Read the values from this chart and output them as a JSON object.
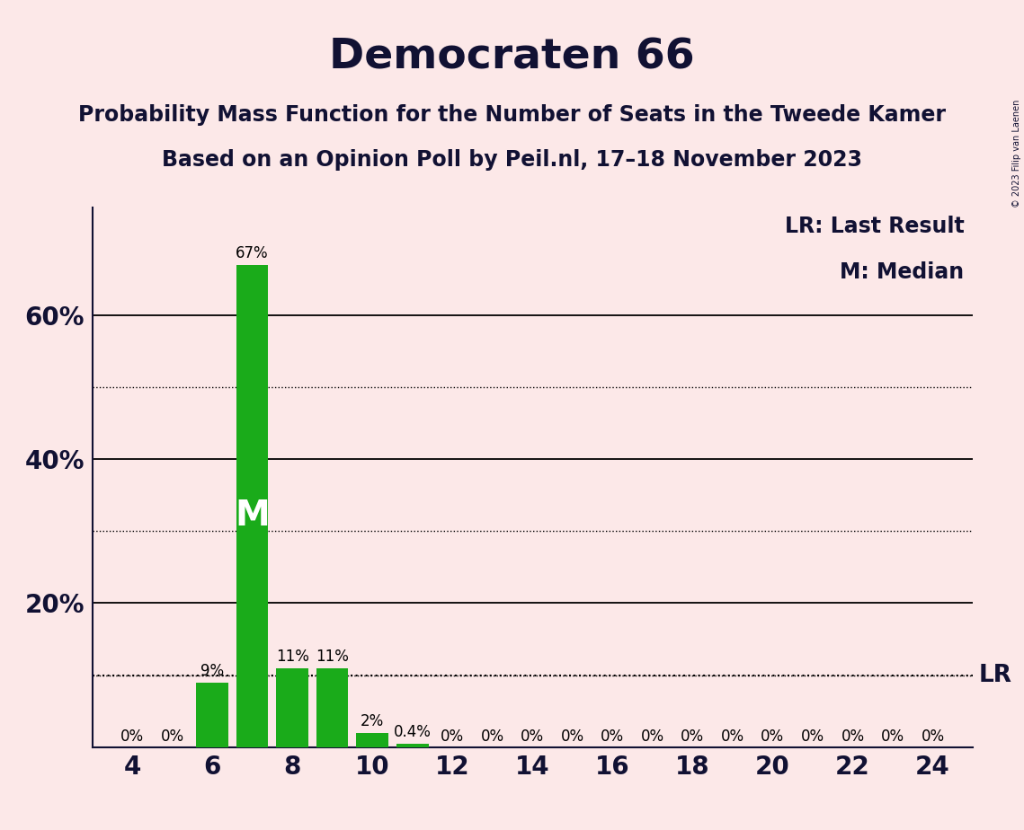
{
  "title": "Democraten 66",
  "subtitle1": "Probability Mass Function for the Number of Seats in the Tweede Kamer",
  "subtitle2": "Based on an Opinion Poll by Peil.nl, 17–18 November 2023",
  "copyright": "© 2023 Filip van Laenen",
  "seats": [
    4,
    5,
    6,
    7,
    8,
    9,
    10,
    11,
    12,
    13,
    14,
    15,
    16,
    17,
    18,
    19,
    20,
    21,
    22,
    23,
    24
  ],
  "probabilities": [
    0.0,
    0.0,
    9.0,
    67.0,
    11.0,
    11.0,
    2.0,
    0.4,
    0.0,
    0.0,
    0.0,
    0.0,
    0.0,
    0.0,
    0.0,
    0.0,
    0.0,
    0.0,
    0.0,
    0.0,
    0.0
  ],
  "bar_labels": [
    "0%",
    "0%",
    "9%",
    "67%",
    "11%",
    "11%",
    "2%",
    "0.4%",
    "0%",
    "0%",
    "0%",
    "0%",
    "0%",
    "0%",
    "0%",
    "0%",
    "0%",
    "0%",
    "0%",
    "0%",
    "0%"
  ],
  "bar_color": "#1aab1a",
  "background_color": "#fce8e8",
  "median_seat": 7,
  "median_label": "M",
  "lr_value": 10.0,
  "lr_label": "LR",
  "legend_lr": "LR: Last Result",
  "legend_m": "M: Median",
  "ylim": [
    0,
    75
  ],
  "solid_gridlines": [
    20,
    40,
    60
  ],
  "dotted_gridlines": [
    10,
    30,
    50
  ],
  "xlabel_seats": [
    4,
    6,
    8,
    10,
    12,
    14,
    16,
    18,
    20,
    22,
    24
  ],
  "title_fontsize": 34,
  "subtitle_fontsize": 17,
  "axis_fontsize": 20,
  "bar_label_fontsize": 12,
  "median_label_fontsize": 28,
  "lr_label_fontsize": 19,
  "legend_fontsize": 17
}
